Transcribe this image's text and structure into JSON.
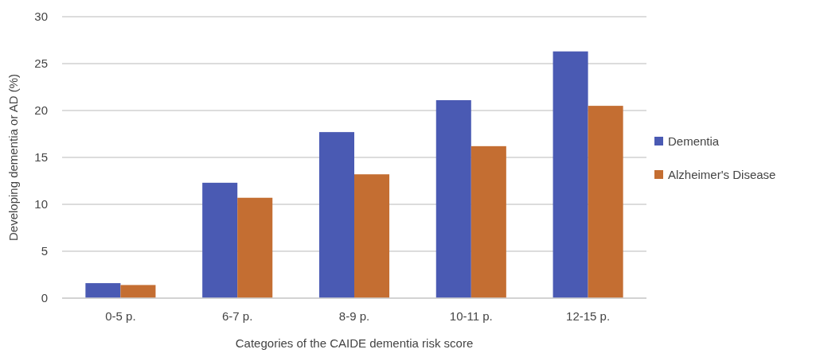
{
  "chart_data": {
    "type": "bar",
    "xlabel": "Categories of the CAIDE dementia risk score",
    "ylabel": "Developing dementia or AD (%)",
    "categories": [
      "0-5 p.",
      "6-7 p.",
      "8-9 p.",
      "10-11 p.",
      "12-15 p."
    ],
    "series": [
      {
        "name": "Dementia",
        "color": "#4a5ab3",
        "values": [
          1.6,
          12.3,
          17.7,
          21.1,
          26.3
        ]
      },
      {
        "name": "Alzheimer's Disease",
        "color": "#c46e32",
        "values": [
          1.4,
          10.7,
          13.2,
          16.2,
          20.5
        ]
      }
    ],
    "ylim": [
      0,
      30
    ],
    "yticks": [
      0,
      5,
      10,
      15,
      20,
      25,
      30
    ],
    "grid": "y",
    "legend": "right"
  }
}
